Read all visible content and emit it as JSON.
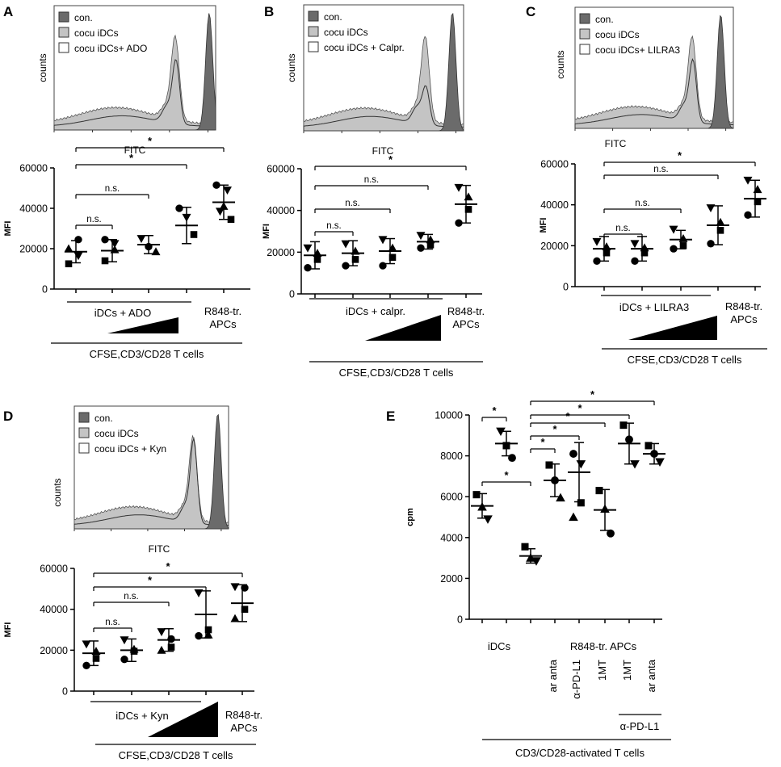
{
  "chart_data": [
    {
      "panel": "A",
      "type": "scatter",
      "histogram": {
        "legend": [
          "con.",
          "cocu iDCs",
          "cocu iDCs+ ADO"
        ],
        "xlabel": "FITC",
        "ylabel": "counts"
      },
      "ylabel": "MFI",
      "ylim": [
        0,
        60000
      ],
      "yticks": [
        "0",
        "20000",
        "40000",
        "60000"
      ],
      "groups": [
        {
          "mean": 18500,
          "sd": 5500,
          "points": [
            [
              20000,
              "tri"
            ],
            [
              24500,
              "circ"
            ],
            [
              16500,
              "dtri"
            ],
            [
              12500,
              "sq"
            ]
          ]
        },
        {
          "mean": 19000,
          "sd": 5500,
          "points": [
            [
              24500,
              "circ"
            ],
            [
              19500,
              "tri"
            ],
            [
              22500,
              "dtri"
            ],
            [
              14000,
              "sq"
            ]
          ]
        },
        {
          "mean": 22000,
          "sd": 4500,
          "points": [
            [
              25000,
              "dtri"
            ],
            [
              21000,
              "circ"
            ],
            [
              18500,
              "tri"
            ]
          ]
        },
        {
          "mean": 31500,
          "sd": 9000,
          "points": [
            [
              40000,
              "circ"
            ],
            [
              35500,
              "dtri"
            ],
            [
              27000,
              "sq"
            ]
          ]
        },
        {
          "mean": 43000,
          "sd": 8500,
          "points": [
            [
              51500,
              "circ"
            ],
            [
              49000,
              "dtri"
            ],
            [
              41000,
              "tri"
            ],
            [
              38500,
              "dtri"
            ],
            [
              34500,
              "sq"
            ]
          ]
        }
      ],
      "comparisons": [
        {
          "from": 0,
          "to": 1,
          "label": "n.s."
        },
        {
          "from": 0,
          "to": 2,
          "label": "n.s."
        },
        {
          "from": 0,
          "to": 3,
          "label": "*"
        },
        {
          "from": 0,
          "to": 4,
          "label": "*"
        }
      ],
      "conditions": {
        "treatment": "iDCs + ADO",
        "control_line1": "R848-tr.",
        "control_line2": "APCs",
        "bottom": "CFSE,CD3/CD28 T cells"
      }
    },
    {
      "panel": "B",
      "type": "scatter",
      "histogram": {
        "legend": [
          "con.",
          "cocu iDCs",
          "cocu iDCs + Calpr."
        ],
        "xlabel": "FITC",
        "ylabel": "counts"
      },
      "ylabel": "MFI",
      "ylim": [
        0,
        60000
      ],
      "yticks": [
        "0",
        "20000",
        "40000",
        "60000"
      ],
      "groups": [
        {
          "mean": 18500,
          "sd": 6500,
          "points": [
            [
              22000,
              "dtri"
            ],
            [
              19500,
              "tri"
            ],
            [
              16500,
              "sq"
            ],
            [
              12500,
              "circ"
            ]
          ]
        },
        {
          "mean": 19500,
          "sd": 6000,
          "points": [
            [
              24000,
              "dtri"
            ],
            [
              20500,
              "tri"
            ],
            [
              16500,
              "sq"
            ],
            [
              13500,
              "circ"
            ]
          ]
        },
        {
          "mean": 20500,
          "sd": 6000,
          "points": [
            [
              26000,
              "dtri"
            ],
            [
              22000,
              "tri"
            ],
            [
              17500,
              "sq"
            ],
            [
              13500,
              "circ"
            ]
          ]
        },
        {
          "mean": 25000,
          "sd": 3500,
          "points": [
            [
              28000,
              "dtri"
            ],
            [
              26000,
              "tri"
            ],
            [
              23500,
              "sq"
            ],
            [
              22000,
              "circ"
            ]
          ]
        },
        {
          "mean": 43000,
          "sd": 9000,
          "points": [
            [
              51000,
              "dtri"
            ],
            [
              46500,
              "tri"
            ],
            [
              40500,
              "sq"
            ],
            [
              34000,
              "circ"
            ]
          ]
        }
      ],
      "comparisons": [
        {
          "from": 0,
          "to": 1,
          "label": "n.s."
        },
        {
          "from": 0,
          "to": 2,
          "label": "n.s."
        },
        {
          "from": 0,
          "to": 3,
          "label": "n.s."
        },
        {
          "from": 0,
          "to": 4,
          "label": "*"
        }
      ],
      "conditions": {
        "treatment": "iDCs + calpr.",
        "control_line1": "R848-tr.",
        "control_line2": "APCs",
        "bottom": "CFSE,CD3/CD28 T cells"
      }
    },
    {
      "panel": "C",
      "type": "scatter",
      "histogram": {
        "legend": [
          "con.",
          "cocu iDCs",
          "cocu iDCs+ LILRA3"
        ],
        "xlabel": "FITC",
        "ylabel": "counts"
      },
      "ylabel": "MFI",
      "ylim": [
        0,
        60000
      ],
      "yticks": [
        "0",
        "20000",
        "40000",
        "60000"
      ],
      "groups": [
        {
          "mean": 18500,
          "sd": 6000,
          "points": [
            [
              22000,
              "dtri"
            ],
            [
              19500,
              "tri"
            ],
            [
              16500,
              "sq"
            ],
            [
              12500,
              "circ"
            ]
          ]
        },
        {
          "mean": 18500,
          "sd": 6000,
          "points": [
            [
              21000,
              "dtri"
            ],
            [
              19000,
              "tri"
            ],
            [
              16500,
              "sq"
            ],
            [
              12500,
              "circ"
            ]
          ]
        },
        {
          "mean": 23000,
          "sd": 4500,
          "points": [
            [
              28000,
              "dtri"
            ],
            [
              23500,
              "tri"
            ],
            [
              20000,
              "sq"
            ],
            [
              18500,
              "circ"
            ]
          ]
        },
        {
          "mean": 30000,
          "sd": 9500,
          "points": [
            [
              38500,
              "dtri"
            ],
            [
              31500,
              "tri"
            ],
            [
              27500,
              "sq"
            ],
            [
              21000,
              "circ"
            ]
          ]
        },
        {
          "mean": 43000,
          "sd": 9000,
          "points": [
            [
              52000,
              "dtri"
            ],
            [
              47500,
              "tri"
            ],
            [
              41500,
              "sq"
            ],
            [
              35000,
              "circ"
            ]
          ]
        }
      ],
      "comparisons": [
        {
          "from": 0,
          "to": 1,
          "label": "n.s."
        },
        {
          "from": 0,
          "to": 2,
          "label": "n.s."
        },
        {
          "from": 0,
          "to": 3,
          "label": "n.s."
        },
        {
          "from": 0,
          "to": 4,
          "label": "*"
        }
      ],
      "conditions": {
        "treatment": "iDCs + LILRA3",
        "control_line1": "R848-tr.",
        "control_line2": "APCs",
        "bottom": "CFSE,CD3/CD28 T cells"
      }
    },
    {
      "panel": "D",
      "type": "scatter",
      "histogram": {
        "legend": [
          "con.",
          "cocu iDCs",
          "cocu iDCs + Kyn"
        ],
        "xlabel": "FITC",
        "ylabel": "counts"
      },
      "ylabel": "MFI",
      "ylim": [
        0,
        60000
      ],
      "yticks": [
        "0",
        "20000",
        "40000",
        "60000"
      ],
      "groups": [
        {
          "mean": 18500,
          "sd": 6000,
          "points": [
            [
              23000,
              "dtri"
            ],
            [
              19500,
              "tri"
            ],
            [
              16000,
              "sq"
            ],
            [
              12500,
              "circ"
            ]
          ]
        },
        {
          "mean": 20000,
          "sd": 5500,
          "points": [
            [
              25000,
              "dtri"
            ],
            [
              20500,
              "tri"
            ],
            [
              19500,
              "sq"
            ],
            [
              15500,
              "circ"
            ]
          ]
        },
        {
          "mean": 25000,
          "sd": 5500,
          "points": [
            [
              29000,
              "dtri"
            ],
            [
              25500,
              "circ"
            ],
            [
              21500,
              "sq"
            ],
            [
              20000,
              "tri"
            ]
          ]
        },
        {
          "mean": 37500,
          "sd": 11500,
          "points": [
            [
              48000,
              "dtri"
            ],
            [
              30000,
              "sq"
            ],
            [
              27500,
              "tri"
            ],
            [
              27000,
              "circ"
            ]
          ]
        },
        {
          "mean": 43000,
          "sd": 9000,
          "points": [
            [
              51000,
              "dtri"
            ],
            [
              50500,
              "circ"
            ],
            [
              40000,
              "sq"
            ],
            [
              35500,
              "tri"
            ]
          ]
        }
      ],
      "comparisons": [
        {
          "from": 0,
          "to": 1,
          "label": "n.s."
        },
        {
          "from": 0,
          "to": 2,
          "label": "n.s."
        },
        {
          "from": 0,
          "to": 3,
          "label": "*"
        },
        {
          "from": 0,
          "to": 4,
          "label": "*"
        }
      ],
      "conditions": {
        "treatment": "iDCs + Kyn",
        "control_line1": "R848-tr.",
        "control_line2": "APCs",
        "bottom": "CFSE,CD3/CD28 T cells"
      }
    },
    {
      "panel": "E",
      "type": "scatter",
      "ylabel": "cpm",
      "ylim": [
        0,
        10000
      ],
      "yticks": [
        "0",
        "2000",
        "4000",
        "6000",
        "8000",
        "10000"
      ],
      "groups": [
        {
          "mean": 5550,
          "sd": 600,
          "points": [
            [
              6100,
              "sq"
            ],
            [
              5500,
              "tri"
            ],
            [
              4900,
              "dtri"
            ]
          ]
        },
        {
          "mean": 8600,
          "sd": 600,
          "points": [
            [
              9200,
              "dtri"
            ],
            [
              8500,
              "sq"
            ],
            [
              7900,
              "circ"
            ]
          ]
        },
        {
          "mean": 3100,
          "sd": 350,
          "points": [
            [
              3550,
              "sq"
            ],
            [
              3000,
              "tri"
            ],
            [
              2850,
              "dtri"
            ]
          ]
        },
        {
          "mean": 6800,
          "sd": 800,
          "points": [
            [
              7550,
              "sq"
            ],
            [
              6800,
              "circ"
            ],
            [
              5950,
              "tri"
            ]
          ]
        },
        {
          "mean": 7200,
          "sd": 1450,
          "points": [
            [
              8100,
              "circ"
            ],
            [
              7600,
              "dtri"
            ],
            [
              5700,
              "sq"
            ],
            [
              5000,
              "tri"
            ]
          ]
        },
        {
          "mean": 5350,
          "sd": 1000,
          "points": [
            [
              6300,
              "sq"
            ],
            [
              5400,
              "tri"
            ],
            [
              4200,
              "circ"
            ]
          ]
        },
        {
          "mean": 8600,
          "sd": 1000,
          "points": [
            [
              9500,
              "sq"
            ],
            [
              8800,
              "circ"
            ],
            [
              7600,
              "dtri"
            ]
          ]
        },
        {
          "mean": 8100,
          "sd": 500,
          "points": [
            [
              8500,
              "sq"
            ],
            [
              8100,
              "circ"
            ],
            [
              7700,
              "dtri"
            ]
          ]
        }
      ],
      "comparisons": [
        {
          "from": 0,
          "to": 1,
          "label": "*"
        },
        {
          "from": 0,
          "to": 2,
          "label": "*"
        },
        {
          "from": 2,
          "to": 3,
          "label": "*"
        },
        {
          "from": 2,
          "to": 4,
          "label": "*"
        },
        {
          "from": 2,
          "to": 5,
          "label": "*"
        },
        {
          "from": 2,
          "to": 6,
          "label": "*"
        },
        {
          "from": 2,
          "to": 7,
          "label": "*"
        }
      ],
      "conditions": {
        "group1": "iDCs",
        "group2": "R848-tr. APCs",
        "treatments": [
          "ar anta",
          "α-PD-L1",
          "1MT",
          "1MT",
          "ar anta"
        ],
        "sub_bracket": "α-PD-L1",
        "bottom": "CD3/CD28-activated T cells"
      }
    }
  ]
}
